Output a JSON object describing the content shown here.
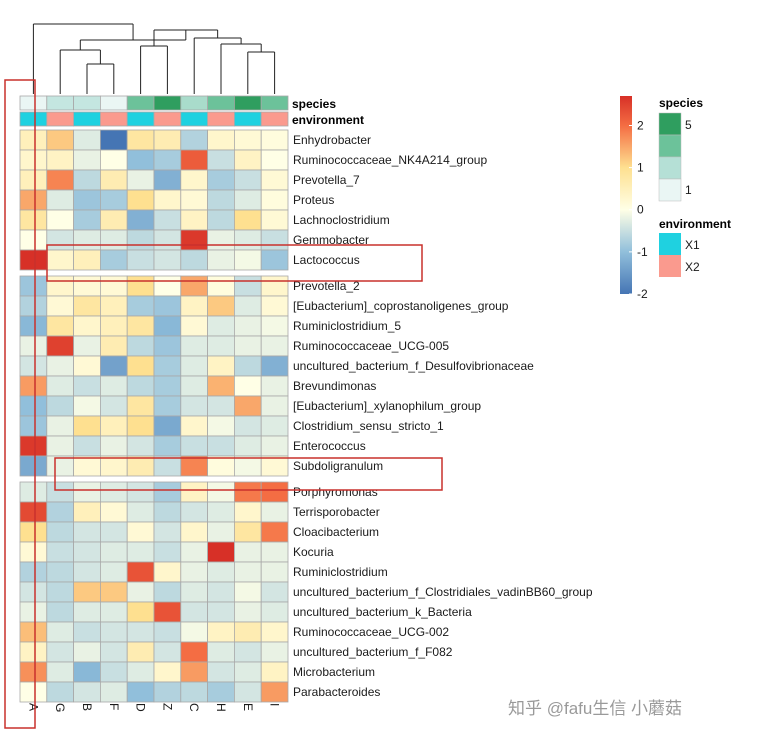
{
  "chart_data": {
    "type": "heatmap",
    "columns": [
      "A",
      "G",
      "B",
      "F",
      "D",
      "Z",
      "C",
      "H",
      "E",
      "I"
    ],
    "rows": [
      "Enhydrobacter",
      "Ruminococcaceae_NK4A214_group",
      "Prevotella_7",
      "Proteus",
      "Lachnoclostridium",
      "Gemmobacter",
      "Lactococcus",
      "Prevotella_2",
      "[Eubacterium]_coprostanoligenes_group",
      "Ruminiclostridium_5",
      "Ruminococcaceae_UCG-005",
      "uncultured_bacterium_f_Desulfovibrionaceae",
      "Brevundimonas",
      "[Eubacterium]_xylanophilum_group",
      "Clostridium_sensu_stricto_1",
      "Enterococcus",
      "Subdoligranulum",
      "Porphyromonas",
      "Terrisporobacter",
      "Cloacibacterium",
      "Kocuria",
      "Ruminiclostridium",
      "uncultured_bacterium_f_Clostridiales_vadinBB60_group",
      "uncultured_bacterium_k_Bacteria",
      "Ruminococcaceae_UCG-002",
      "uncultured_bacterium_f_F082",
      "Microbacterium",
      "Parabacteroides"
    ],
    "row_groups": [
      7,
      10,
      11
    ],
    "values": [
      [
        0.5,
        1.2,
        -0.3,
        -2.0,
        0.8,
        0.6,
        -0.7,
        0.3,
        0.2,
        0.1
      ],
      [
        0.3,
        0.4,
        -0.2,
        0.0,
        -1.0,
        -0.8,
        2.2,
        -0.5,
        0.4,
        0.0
      ],
      [
        0.5,
        1.8,
        -0.6,
        0.6,
        -0.2,
        -1.2,
        0.3,
        -0.8,
        -0.5,
        0.2
      ],
      [
        1.5,
        -0.3,
        -0.9,
        -0.8,
        1.0,
        0.3,
        0.2,
        -0.6,
        -0.3,
        0.1
      ],
      [
        0.8,
        0.0,
        -0.8,
        0.6,
        -1.2,
        -0.5,
        0.4,
        -0.6,
        1.0,
        0.2
      ],
      [
        0.0,
        -0.4,
        -0.3,
        -0.3,
        -0.6,
        -0.4,
        2.6,
        -0.2,
        -0.3,
        -0.5
      ],
      [
        2.7,
        0.3,
        0.5,
        -0.8,
        -0.5,
        -0.4,
        -0.6,
        -0.2,
        -0.1,
        -0.9
      ],
      [
        -0.9,
        0.3,
        0.2,
        0.2,
        1.0,
        0.0,
        1.5,
        0.1,
        -0.5,
        0.3
      ],
      [
        -0.7,
        0.2,
        0.8,
        0.5,
        -0.8,
        -0.9,
        0.4,
        1.2,
        -0.3,
        0.2
      ],
      [
        -1.1,
        0.8,
        0.3,
        0.5,
        0.8,
        -1.1,
        0.2,
        -0.3,
        -0.2,
        -0.1
      ],
      [
        -0.2,
        2.5,
        -0.2,
        0.6,
        -0.6,
        -0.9,
        -0.3,
        -0.3,
        -0.2,
        -0.2
      ],
      [
        -0.4,
        -0.2,
        0.2,
        -1.4,
        1.0,
        -0.8,
        -0.3,
        0.4,
        -0.6,
        -1.2
      ],
      [
        1.6,
        -0.3,
        -0.5,
        -0.3,
        -0.6,
        -0.8,
        -0.3,
        1.4,
        0.0,
        -0.2
      ],
      [
        -1.0,
        -0.6,
        -0.1,
        -0.4,
        0.8,
        -0.8,
        -0.4,
        -0.4,
        1.5,
        -0.2
      ],
      [
        -0.9,
        -0.2,
        1.0,
        0.5,
        1.0,
        -1.3,
        0.3,
        -0.1,
        -0.4,
        -0.3
      ],
      [
        2.6,
        -0.2,
        -0.5,
        -0.2,
        -0.4,
        -0.8,
        -0.5,
        -0.5,
        -0.3,
        -0.2
      ],
      [
        -1.3,
        -0.2,
        0.2,
        0.3,
        0.6,
        -0.5,
        1.8,
        0.1,
        -0.1,
        0.2
      ],
      [
        -0.3,
        -0.5,
        -0.2,
        -0.3,
        -0.4,
        -0.8,
        0.4,
        -0.1,
        1.9,
        2.0
      ],
      [
        2.4,
        -0.7,
        0.5,
        0.2,
        -0.3,
        -0.6,
        -0.4,
        -0.3,
        0.3,
        -0.2
      ],
      [
        1.0,
        -0.6,
        -0.4,
        -0.4,
        0.2,
        -0.4,
        0.3,
        -0.2,
        0.8,
        1.9
      ],
      [
        0.2,
        -0.5,
        -0.4,
        -0.3,
        -0.3,
        -0.5,
        -0.2,
        2.7,
        -0.2,
        -0.2
      ],
      [
        -0.7,
        -0.6,
        -0.4,
        -0.3,
        2.3,
        0.3,
        -0.2,
        -0.3,
        -0.2,
        -0.2
      ],
      [
        -0.4,
        -0.6,
        1.2,
        1.2,
        -0.2,
        -0.6,
        -0.3,
        -0.4,
        -0.1,
        -0.4
      ],
      [
        -0.2,
        -0.6,
        -0.3,
        -0.3,
        1.0,
        2.3,
        -0.4,
        -0.4,
        -0.2,
        -0.3
      ],
      [
        1.3,
        -0.3,
        -0.5,
        -0.4,
        -0.4,
        -0.5,
        -0.1,
        0.4,
        0.6,
        0.3
      ],
      [
        0.4,
        -0.4,
        -0.2,
        -0.4,
        0.6,
        -0.4,
        2.0,
        -0.3,
        -0.4,
        -0.2
      ],
      [
        1.7,
        -0.3,
        -1.1,
        -0.5,
        -0.3,
        0.3,
        1.6,
        -0.4,
        -0.3,
        0.4
      ],
      [
        0.0,
        -0.6,
        -0.4,
        -0.3,
        -1.0,
        -0.7,
        -0.6,
        -0.8,
        -0.4,
        1.6
      ]
    ],
    "annotations": [
      {
        "name": "species",
        "values": [
          1,
          2,
          2,
          1,
          4,
          5,
          3,
          4,
          5,
          4
        ]
      },
      {
        "name": "environment",
        "values": [
          "X1",
          "X2",
          "X1",
          "X2",
          "X1",
          "X2",
          "X1",
          "X2",
          "X1",
          "X2"
        ]
      }
    ],
    "legend": {
      "color_scale": {
        "min": -2,
        "max": 2.7,
        "ticks": [
          2,
          1,
          0,
          -1,
          -2
        ],
        "colors": [
          "#4575b4",
          "#ffffbf",
          "#d73027"
        ]
      },
      "species": {
        "title": "species",
        "tick_labels": [
          "5",
          "1"
        ],
        "colors": [
          "#2f9e5f",
          "#6cc29a",
          "#a9dccb",
          "#eaf6f4"
        ]
      },
      "environment": {
        "title": "environment",
        "levels": [
          "X1",
          "X2"
        ],
        "colors": [
          "#1fd1e0",
          "#fa9a8e"
        ]
      }
    },
    "highlights": {
      "column": "A",
      "rows": [
        "Lactococcus",
        "Subdoligranulum"
      ]
    },
    "grid": true,
    "dendrogram": "columns"
  },
  "watermark": "知乎 @fafu生信 小蘑菇",
  "colors": {
    "highlight_box": "#c9302c",
    "cell_border": "#a8a8a8"
  }
}
